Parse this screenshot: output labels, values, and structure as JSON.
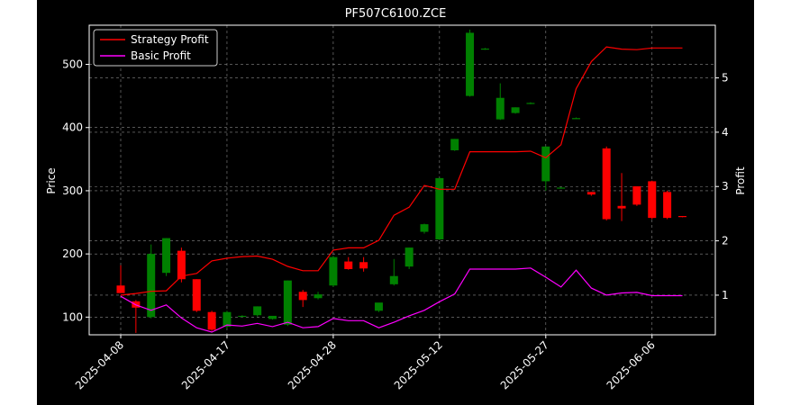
{
  "chart_data": {
    "type": "candlestick",
    "title": "PF507C6100.ZCE",
    "ylabel_left": "Price",
    "ylabel_right": "Profit",
    "xlabel": "",
    "ylim_left": [
      72,
      562
    ],
    "ylim_right": [
      0.27,
      5.97
    ],
    "y_ticks_left": [
      100,
      200,
      300,
      400,
      500
    ],
    "y_ticks_right": [
      1,
      2,
      3,
      4,
      5
    ],
    "x_ticks": [
      {
        "i": 0,
        "label": "2025-04-08"
      },
      {
        "i": 7,
        "label": "2025-04-17"
      },
      {
        "i": 14,
        "label": "2025-04-28"
      },
      {
        "i": 21,
        "label": "2025-05-12"
      },
      {
        "i": 28,
        "label": "2025-05-27"
      },
      {
        "i": 35,
        "label": "2025-06-06"
      }
    ],
    "grid": true,
    "legend_position": "top-left",
    "colors": {
      "background": "#000000",
      "up": "#008000",
      "down": "#ff0000",
      "strategy": "#ff0000",
      "basic": "#ff00ff",
      "text": "#ffffff"
    },
    "candles": [
      {
        "i": 0,
        "o": 150,
        "h": 182,
        "l": 140,
        "c": 138
      },
      {
        "i": 1,
        "o": 125,
        "h": 127,
        "l": 75,
        "c": 115
      },
      {
        "i": 2,
        "o": 100,
        "h": 215,
        "l": 98,
        "c": 200
      },
      {
        "i": 3,
        "o": 170,
        "h": 225,
        "l": 165,
        "c": 225
      },
      {
        "i": 4,
        "o": 205,
        "h": 210,
        "l": 155,
        "c": 160
      },
      {
        "i": 5,
        "o": 160,
        "h": 160,
        "l": 108,
        "c": 110
      },
      {
        "i": 6,
        "o": 108,
        "h": 110,
        "l": 78,
        "c": 80
      },
      {
        "i": 7,
        "o": 85,
        "h": 110,
        "l": 82,
        "c": 108
      },
      {
        "i": 8,
        "o": 101,
        "h": 103,
        "l": 100,
        "c": 102
      },
      {
        "i": 9,
        "o": 103,
        "h": 117,
        "l": 101,
        "c": 117
      },
      {
        "i": 10,
        "o": 97,
        "h": 102,
        "l": 96,
        "c": 102
      },
      {
        "i": 11,
        "o": 88,
        "h": 158,
        "l": 86,
        "c": 158
      },
      {
        "i": 12,
        "o": 140,
        "h": 143,
        "l": 116,
        "c": 127
      },
      {
        "i": 13,
        "o": 130,
        "h": 140,
        "l": 128,
        "c": 136
      },
      {
        "i": 14,
        "o": 150,
        "h": 197,
        "l": 148,
        "c": 195
      },
      {
        "i": 15,
        "o": 188,
        "h": 195,
        "l": 175,
        "c": 176
      },
      {
        "i": 16,
        "o": 187,
        "h": 195,
        "l": 172,
        "c": 177
      },
      {
        "i": 17,
        "o": 110,
        "h": 122,
        "l": 108,
        "c": 123
      },
      {
        "i": 18,
        "o": 152,
        "h": 192,
        "l": 150,
        "c": 165
      },
      {
        "i": 19,
        "o": 180,
        "h": 210,
        "l": 176,
        "c": 210
      },
      {
        "i": 20,
        "o": 235,
        "h": 248,
        "l": 232,
        "c": 247
      },
      {
        "i": 21,
        "o": 223,
        "h": 320,
        "l": 222,
        "c": 320
      },
      {
        "i": 22,
        "o": 364,
        "h": 382,
        "l": 363,
        "c": 382
      },
      {
        "i": 23,
        "o": 450,
        "h": 555,
        "l": 449,
        "c": 550
      },
      {
        "i": 24,
        "o": 524,
        "h": 526,
        "l": 523,
        "c": 525
      },
      {
        "i": 25,
        "o": 413,
        "h": 470,
        "l": 412,
        "c": 447
      },
      {
        "i": 26,
        "o": 423,
        "h": 432,
        "l": 422,
        "c": 432
      },
      {
        "i": 27,
        "o": 438,
        "h": 440,
        "l": 437,
        "c": 439
      },
      {
        "i": 28,
        "o": 315,
        "h": 370,
        "l": 300,
        "c": 370
      },
      {
        "i": 29,
        "o": 305,
        "h": 306,
        "l": 304,
        "c": 305
      },
      {
        "i": 30,
        "o": 415,
        "h": 416,
        "l": 414,
        "c": 415
      },
      {
        "i": 31,
        "o": 298,
        "h": 298,
        "l": 292,
        "c": 294
      },
      {
        "i": 32,
        "o": 367,
        "h": 370,
        "l": 253,
        "c": 255
      },
      {
        "i": 33,
        "o": 276,
        "h": 328,
        "l": 252,
        "c": 272
      },
      {
        "i": 34,
        "o": 307,
        "h": 307,
        "l": 276,
        "c": 278
      },
      {
        "i": 35,
        "o": 315,
        "h": 316,
        "l": 255,
        "c": 257
      },
      {
        "i": 36,
        "o": 298,
        "h": 300,
        "l": 255,
        "c": 257
      },
      {
        "i": 37,
        "o": 260,
        "h": 260,
        "l": 258,
        "c": 259
      }
    ],
    "series": [
      {
        "name": "Strategy Profit",
        "values": [
          1.0,
          1.03,
          1.07,
          1.08,
          1.35,
          1.4,
          1.63,
          1.68,
          1.71,
          1.72,
          1.66,
          1.53,
          1.45,
          1.45,
          1.83,
          1.87,
          1.87,
          2.01,
          2.47,
          2.62,
          3.02,
          2.95,
          2.95,
          3.64,
          3.64,
          3.64,
          3.64,
          3.65,
          3.53,
          3.77,
          4.8,
          5.3,
          5.57,
          5.53,
          5.52,
          5.55,
          5.55,
          5.55
        ]
      },
      {
        "name": "Basic Profit",
        "values": [
          0.98,
          0.82,
          0.72,
          0.82,
          0.58,
          0.4,
          0.32,
          0.45,
          0.43,
          0.48,
          0.42,
          0.5,
          0.4,
          0.42,
          0.57,
          0.53,
          0.53,
          0.4,
          0.5,
          0.62,
          0.72,
          0.88,
          1.02,
          1.48,
          1.48,
          1.48,
          1.48,
          1.5,
          1.33,
          1.15,
          1.46,
          1.13,
          1.0,
          1.04,
          1.05,
          0.99,
          0.99,
          0.99
        ]
      }
    ]
  }
}
